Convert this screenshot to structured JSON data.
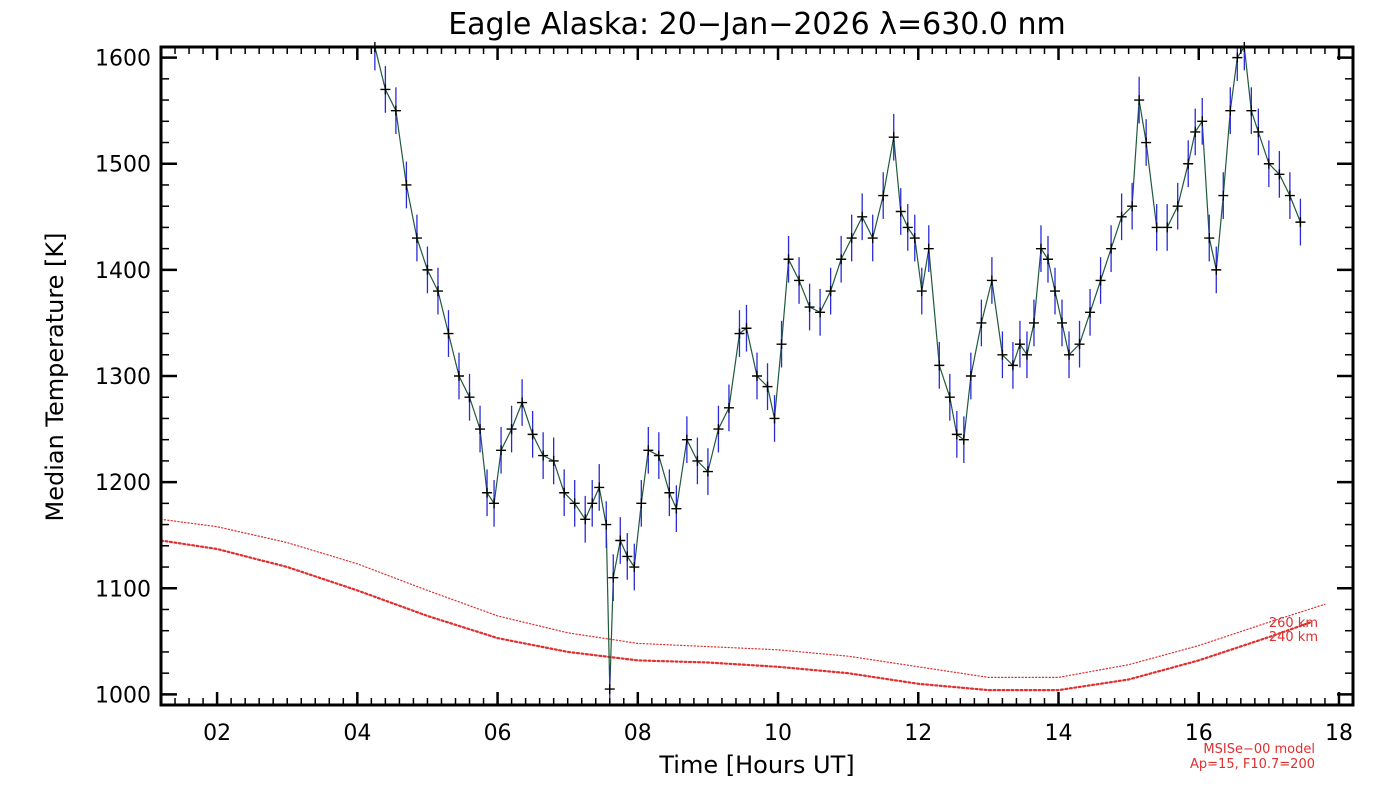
{
  "chart_data": {
    "type": "line",
    "title": "Eagle Alaska: 20−Jan−2026 λ=630.0 nm",
    "xlabel": "Time [Hours UT]",
    "ylabel": "Median Temperature [K]",
    "xlim": [
      1.2,
      18.2
    ],
    "ylim": [
      990,
      1610
    ],
    "xticks": [
      2,
      4,
      6,
      8,
      10,
      12,
      14,
      16,
      18
    ],
    "xtick_labels": [
      "02",
      "04",
      "06",
      "08",
      "10",
      "12",
      "14",
      "16",
      "18"
    ],
    "yticks": [
      1000,
      1100,
      1200,
      1300,
      1400,
      1500,
      1600
    ],
    "ytick_labels": [
      "1000",
      "1100",
      "1200",
      "1300",
      "1400",
      "1500",
      "1600"
    ],
    "series": [
      {
        "name": "Median Temperature",
        "color": "#2a2ad8",
        "errorbar": 22,
        "x": [
          4.25,
          4.4,
          4.55,
          4.7,
          4.85,
          5.0,
          5.15,
          5.3,
          5.45,
          5.6,
          5.75,
          5.85,
          5.95,
          6.05,
          6.2,
          6.35,
          6.5,
          6.65,
          6.8,
          6.95,
          7.1,
          7.25,
          7.35,
          7.45,
          7.55,
          7.6,
          7.65,
          7.75,
          7.85,
          7.95,
          8.05,
          8.15,
          8.3,
          8.45,
          8.55,
          8.7,
          8.85,
          9.0,
          9.15,
          9.3,
          9.45,
          9.55,
          9.7,
          9.85,
          9.95,
          10.05,
          10.15,
          10.3,
          10.45,
          10.6,
          10.75,
          10.9,
          11.05,
          11.2,
          11.35,
          11.5,
          11.65,
          11.75,
          11.85,
          11.95,
          12.05,
          12.15,
          12.3,
          12.45,
          12.55,
          12.65,
          12.75,
          12.9,
          13.05,
          13.2,
          13.35,
          13.45,
          13.55,
          13.65,
          13.75,
          13.85,
          13.95,
          14.05,
          14.15,
          14.3,
          14.45,
          14.6,
          14.75,
          14.9,
          15.05,
          15.15,
          15.25,
          15.4,
          15.55,
          15.7,
          15.85,
          15.95,
          16.05,
          16.15,
          16.25,
          16.35,
          16.45,
          16.55,
          16.65,
          16.75,
          16.85,
          17.0,
          17.15,
          17.3,
          17.45
        ],
        "y": [
          1610,
          1570,
          1550,
          1480,
          1430,
          1400,
          1380,
          1340,
          1300,
          1280,
          1250,
          1190,
          1180,
          1230,
          1250,
          1275,
          1245,
          1225,
          1220,
          1190,
          1180,
          1165,
          1180,
          1195,
          1160,
          1005,
          1110,
          1145,
          1130,
          1120,
          1180,
          1230,
          1225,
          1190,
          1175,
          1240,
          1220,
          1210,
          1250,
          1270,
          1340,
          1345,
          1300,
          1290,
          1260,
          1330,
          1410,
          1390,
          1365,
          1360,
          1380,
          1410,
          1430,
          1450,
          1430,
          1470,
          1525,
          1455,
          1440,
          1430,
          1380,
          1420,
          1310,
          1280,
          1245,
          1240,
          1300,
          1350,
          1390,
          1320,
          1310,
          1330,
          1320,
          1350,
          1420,
          1410,
          1380,
          1350,
          1320,
          1330,
          1360,
          1390,
          1420,
          1450,
          1460,
          1560,
          1520,
          1440,
          1440,
          1460,
          1500,
          1530,
          1540,
          1430,
          1400,
          1470,
          1550,
          1600,
          1610,
          1550,
          1530,
          1500,
          1490,
          1470,
          1445
        ]
      },
      {
        "name": "260 km",
        "color": "#e03030",
        "x": [
          1.2,
          2.0,
          3.0,
          4.0,
          5.0,
          6.0,
          7.0,
          8.0,
          9.0,
          10.0,
          11.0,
          12.0,
          13.0,
          14.0,
          15.0,
          16.0,
          17.0,
          17.8
        ],
        "y": [
          1165,
          1158,
          1143,
          1123,
          1098,
          1074,
          1058,
          1048,
          1045,
          1042,
          1036,
          1026,
          1016,
          1016,
          1028,
          1046,
          1068,
          1085
        ]
      },
      {
        "name": "240 km",
        "color": "#e03030",
        "x": [
          1.2,
          2.0,
          3.0,
          4.0,
          5.0,
          6.0,
          7.0,
          8.0,
          9.0,
          10.0,
          11.0,
          12.0,
          13.0,
          14.0,
          15.0,
          16.0,
          17.0,
          17.6
        ],
        "y": [
          1145,
          1137,
          1120,
          1098,
          1074,
          1053,
          1040,
          1032,
          1030,
          1026,
          1020,
          1010,
          1004,
          1004,
          1014,
          1032,
          1054,
          1068
        ]
      }
    ],
    "model_labels": [
      "260 km",
      "240 km"
    ],
    "notes": [
      "MSISe−00 model",
      "Ap=15, F10.7=200"
    ],
    "grid": false
  }
}
